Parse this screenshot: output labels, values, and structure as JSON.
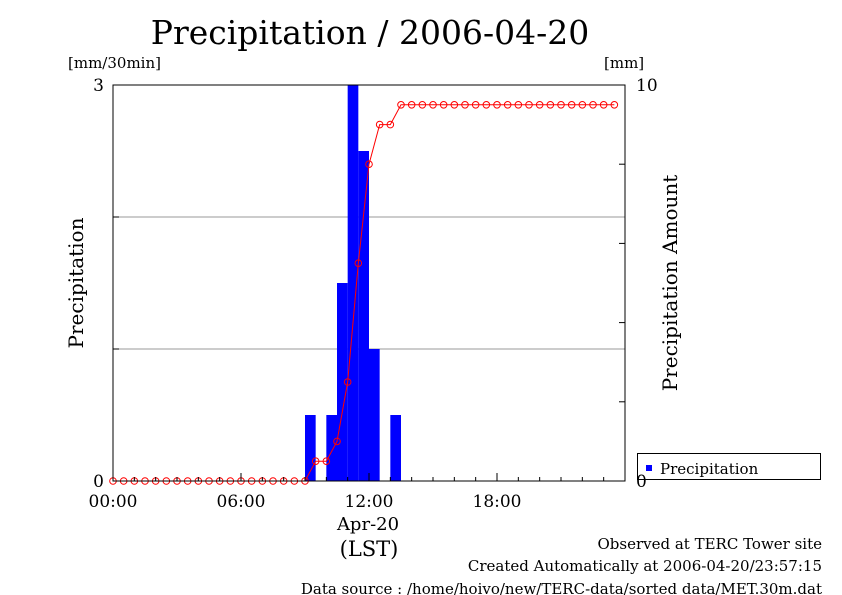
{
  "chart_data": {
    "type": "bar",
    "title": "Precipitation / 2006-04-20",
    "y_left": {
      "unit": "[mm/30min]",
      "label": "Precipitation",
      "ylim": [
        0,
        3
      ],
      "tick_labels": [
        "0",
        "3"
      ]
    },
    "y_right": {
      "unit": "[mm]",
      "label": "Precipitation Amount",
      "ylim": [
        0,
        10
      ],
      "tick_labels": [
        "0",
        "10"
      ]
    },
    "x_axis": {
      "tick_labels": [
        "00:00",
        "06:00",
        "12:00",
        "18:00"
      ],
      "tick_hours": [
        0,
        6,
        12,
        18
      ],
      "xlim_hours": [
        0,
        24
      ],
      "date_label": "Apr-20",
      "unit_label": "(LST)"
    },
    "grid": "horizontal",
    "legend": {
      "position": "bottom-right",
      "label": "Precipitation"
    },
    "bar_width_hours": 0.5,
    "series": [
      {
        "name": "Precipitation",
        "kind": "bar",
        "color": "#0000ff",
        "points": [
          {
            "hour": 9.0,
            "value": 0.5
          },
          {
            "hour": 10.0,
            "value": 0.5
          },
          {
            "hour": 10.5,
            "value": 1.5
          },
          {
            "hour": 11.0,
            "value": 3.0
          },
          {
            "hour": 11.5,
            "value": 2.5
          },
          {
            "hour": 12.0,
            "value": 1.0
          },
          {
            "hour": 13.0,
            "value": 0.5
          }
        ]
      },
      {
        "kind": "line",
        "axis": "right",
        "color": "#ff0000",
        "start_hour": 0,
        "step_hours": 0.5,
        "values": [
          0,
          0,
          0,
          0,
          0,
          0,
          0,
          0,
          0,
          0,
          0,
          0,
          0,
          0,
          0,
          0,
          0,
          0,
          0,
          0.5,
          0.5,
          1.0,
          2.5,
          5.5,
          8.0,
          9.0,
          9.0,
          9.5,
          9.5,
          9.5,
          9.5,
          9.5,
          9.5,
          9.5,
          9.5,
          9.5,
          9.5,
          9.5,
          9.5,
          9.5,
          9.5,
          9.5,
          9.5,
          9.5,
          9.5,
          9.5,
          9.5,
          9.5
        ]
      }
    ]
  },
  "footer": {
    "line1": "Observed at TERC Tower site",
    "line2": "Created Automatically at 2006-04-20/23:57:15",
    "line3": "Data source : /home/hoivo/new/TERC-data/sorted  data/MET.30m.dat"
  }
}
